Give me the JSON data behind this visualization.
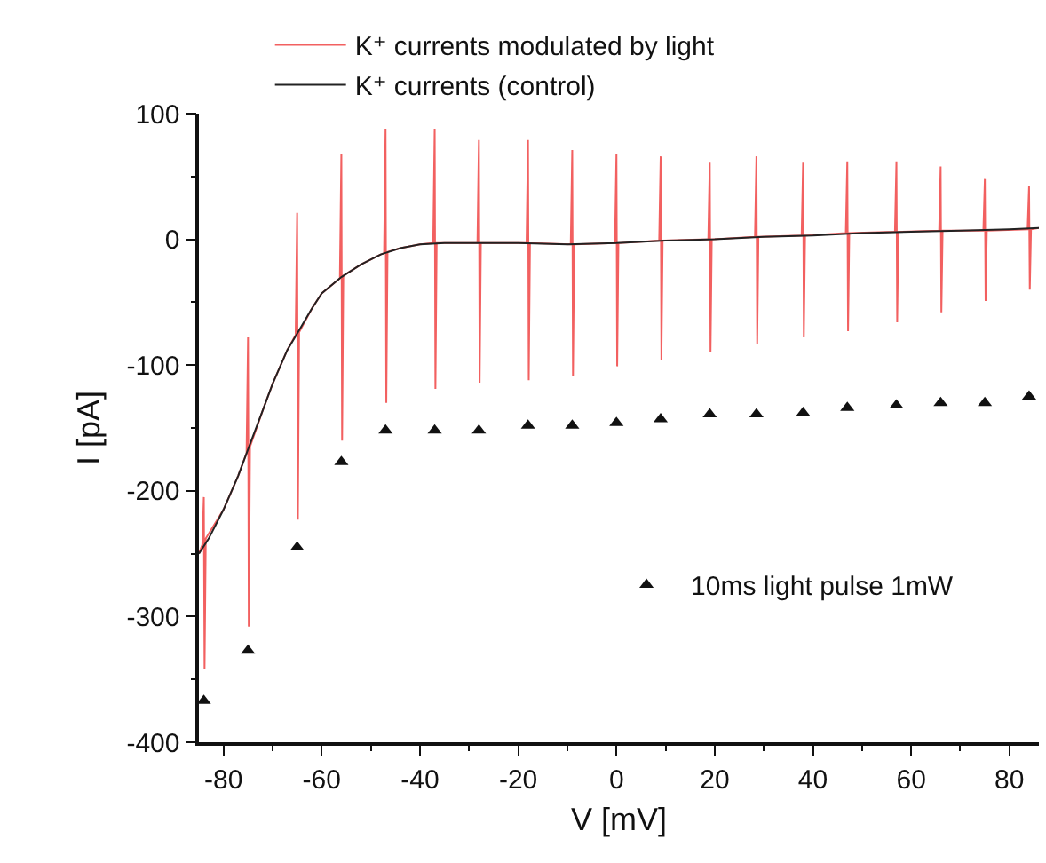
{
  "chart_data": {
    "type": "line",
    "xlabel": "V [mV]",
    "ylabel": "I [pA]",
    "xlim": [
      -85,
      86
    ],
    "xticks": [
      -80,
      -60,
      -40,
      -20,
      0,
      20,
      40,
      60,
      80
    ],
    "ylim": [
      -400,
      100
    ],
    "yticks": [
      -400,
      -300,
      -200,
      -100,
      0,
      100
    ],
    "grid": false,
    "legend": "top",
    "marker": "none",
    "line_style": "solid",
    "series": [
      {
        "name": "K⁺ currents modulated by light",
        "color": "#f26060",
        "x": [
          -85,
          -84.3,
          -84,
          -83.85,
          -83.6,
          -80,
          -77,
          -75.3,
          -75,
          -74.85,
          -74.6,
          -72,
          -70,
          -67,
          -65.3,
          -65,
          -64.85,
          -64.6,
          -62,
          -60,
          -56.3,
          -56,
          -55.85,
          -55.6,
          -52,
          -48,
          -47.3,
          -47,
          -46.85,
          -46.6,
          -44,
          -40,
          -37.3,
          -37,
          -36.85,
          -36.6,
          -30,
          -28.3,
          -28,
          -27.85,
          -27.6,
          -18.3,
          -18,
          -17.85,
          -17.6,
          -9.3,
          -9,
          -8.85,
          -8.6,
          -0.3,
          0,
          0.15,
          0.4,
          8.7,
          9,
          9.15,
          9.4,
          18.7,
          19,
          19.15,
          19.4,
          28.2,
          28.5,
          28.65,
          28.9,
          37.7,
          38,
          38.15,
          38.4,
          46.7,
          47,
          47.15,
          47.4,
          56.7,
          57,
          57.15,
          57.4,
          65.7,
          66,
          66.15,
          66.4,
          74.7,
          75,
          75.15,
          75.4,
          83.7,
          84,
          84.15,
          84.4,
          86
        ],
        "values": [
          -250,
          -243,
          -205,
          -342,
          -238,
          -215,
          -188,
          -170,
          -78,
          -308,
          -165,
          -136,
          -115,
          -88,
          -76,
          21,
          -223,
          -74,
          -55,
          -43,
          -31,
          68,
          -160,
          -29,
          -20,
          -12,
          -11,
          88,
          -130,
          -10,
          -7,
          -4,
          -3,
          88,
          -119,
          -3,
          -3,
          -3,
          79,
          -114,
          -3,
          -3,
          79,
          -112,
          -3,
          -4,
          71,
          -109,
          -4,
          -3,
          68,
          -101,
          -3,
          -1,
          66,
          -96,
          -1,
          0,
          61,
          -90,
          0,
          2,
          66,
          -83,
          2,
          3,
          61,
          -78,
          3,
          5,
          62,
          -73,
          5,
          6,
          62,
          -66,
          6,
          7,
          58,
          -58,
          7,
          7,
          48,
          -49,
          7,
          8,
          42,
          -40,
          8,
          9
        ]
      },
      {
        "name": "K⁺ currents (control)",
        "color": "#222222",
        "x": [
          -85,
          -83,
          -80,
          -77,
          -75,
          -72,
          -70,
          -67,
          -65,
          -62,
          -60,
          -56,
          -52,
          -48,
          -44,
          -40,
          -35,
          -30,
          -20,
          -10,
          0,
          10,
          20,
          30,
          40,
          50,
          60,
          70,
          80,
          86
        ],
        "values": [
          -250,
          -238,
          -215,
          -188,
          -167,
          -136,
          -115,
          -88,
          -75,
          -55,
          -43,
          -30,
          -20,
          -12,
          -7,
          -4,
          -3,
          -3,
          -3,
          -4,
          -3,
          -1,
          0,
          2,
          3,
          5,
          6,
          7,
          8,
          9
        ]
      },
      {
        "name": "10ms light pulse 1mW",
        "type": "scatter",
        "marker": "triangle",
        "color": "#111111",
        "x": [
          -84,
          -75,
          -65,
          -56,
          -47,
          -37,
          -28,
          -18,
          -9,
          0,
          9,
          19,
          28.5,
          38,
          47,
          57,
          66,
          75,
          84
        ],
        "values": [
          -367,
          -327,
          -245,
          -177,
          -152,
          -152,
          -152,
          -148,
          -148,
          -146,
          -143,
          -139,
          -139,
          -138,
          -134,
          -132,
          -130,
          -130,
          -125
        ]
      }
    ]
  }
}
